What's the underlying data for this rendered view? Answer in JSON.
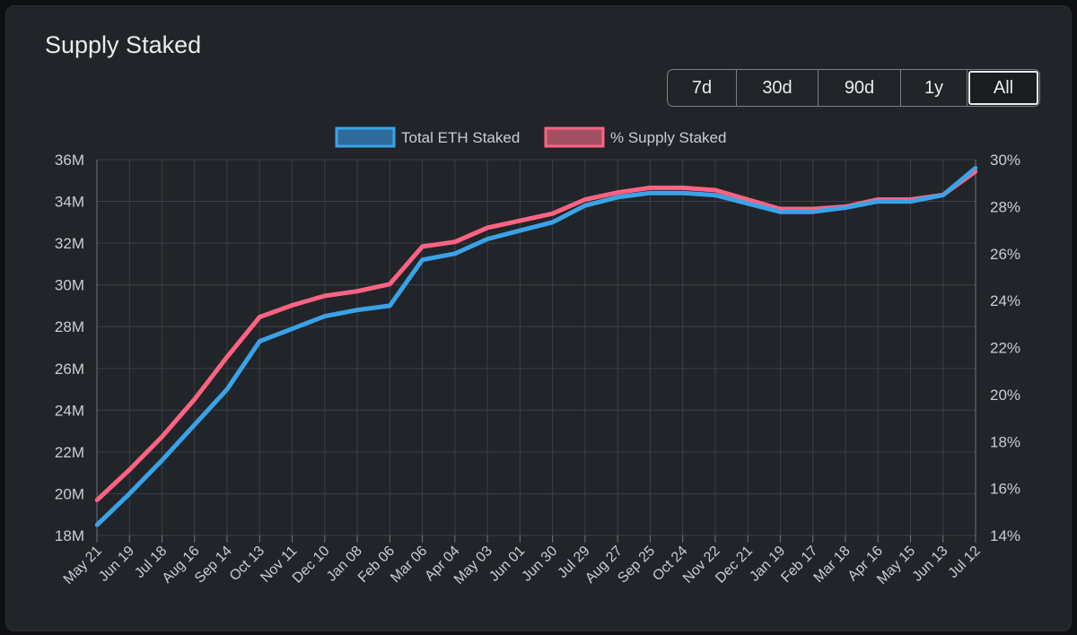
{
  "title": "Supply Staked",
  "ranges": [
    {
      "label": "7d",
      "active": false
    },
    {
      "label": "30d",
      "active": false
    },
    {
      "label": "90d",
      "active": false
    },
    {
      "label": "1y",
      "active": false
    },
    {
      "label": "All",
      "active": true
    }
  ],
  "colors": {
    "eth_staked": "#3aa3e8",
    "eth_staked_fill": "#2d6b99",
    "supply_pct": "#ff6384",
    "supply_pct_fill": "#a34f62",
    "grid": "#3a3f45",
    "text": "#c9ced4"
  },
  "chart_data": {
    "type": "line",
    "legend": [
      "Total ETH Staked",
      "% Supply Staked"
    ],
    "legend_position": "top-center",
    "grid": true,
    "x_labels": [
      "May 21",
      "Jun 19",
      "Jul 18",
      "Aug 16",
      "Sep 14",
      "Oct 13",
      "Nov 11",
      "Dec 10",
      "Jan 08",
      "Feb 06",
      "Mar 06",
      "Apr 04",
      "May 03",
      "Jun 01",
      "Jun 30",
      "Jul 29",
      "Aug 27",
      "Sep 25",
      "Oct 24",
      "Nov 22",
      "Dec 21",
      "Jan 19",
      "Feb 17",
      "Mar 18",
      "Apr 16",
      "May 15",
      "Jun 13",
      "Jul 12"
    ],
    "y_left_ticks": [
      "18M",
      "20M",
      "22M",
      "24M",
      "26M",
      "28M",
      "30M",
      "32M",
      "34M",
      "36M"
    ],
    "y_left_range": [
      18,
      36
    ],
    "y_right_ticks": [
      "14%",
      "16%",
      "18%",
      "20%",
      "22%",
      "24%",
      "26%",
      "28%",
      "30%"
    ],
    "y_right_range": [
      14,
      30
    ],
    "series": [
      {
        "name": "Total ETH Staked",
        "axis": "left",
        "unit": "M",
        "values": [
          18.5,
          20.0,
          21.6,
          23.3,
          25.0,
          27.3,
          27.9,
          28.5,
          28.8,
          29.0,
          31.2,
          31.5,
          32.2,
          32.6,
          33.0,
          33.8,
          34.2,
          34.4,
          34.4,
          34.3,
          33.9,
          33.5,
          33.5,
          33.7,
          34.0,
          34.0,
          34.3,
          35.6
        ]
      },
      {
        "name": "% Supply Staked",
        "axis": "right",
        "unit": "%",
        "values": [
          15.5,
          16.8,
          18.2,
          19.8,
          21.6,
          23.3,
          23.8,
          24.2,
          24.4,
          24.7,
          26.3,
          26.5,
          27.1,
          27.4,
          27.7,
          28.3,
          28.6,
          28.8,
          28.8,
          28.7,
          28.3,
          27.9,
          27.9,
          28.0,
          28.3,
          28.3,
          28.5,
          29.5
        ]
      }
    ]
  }
}
